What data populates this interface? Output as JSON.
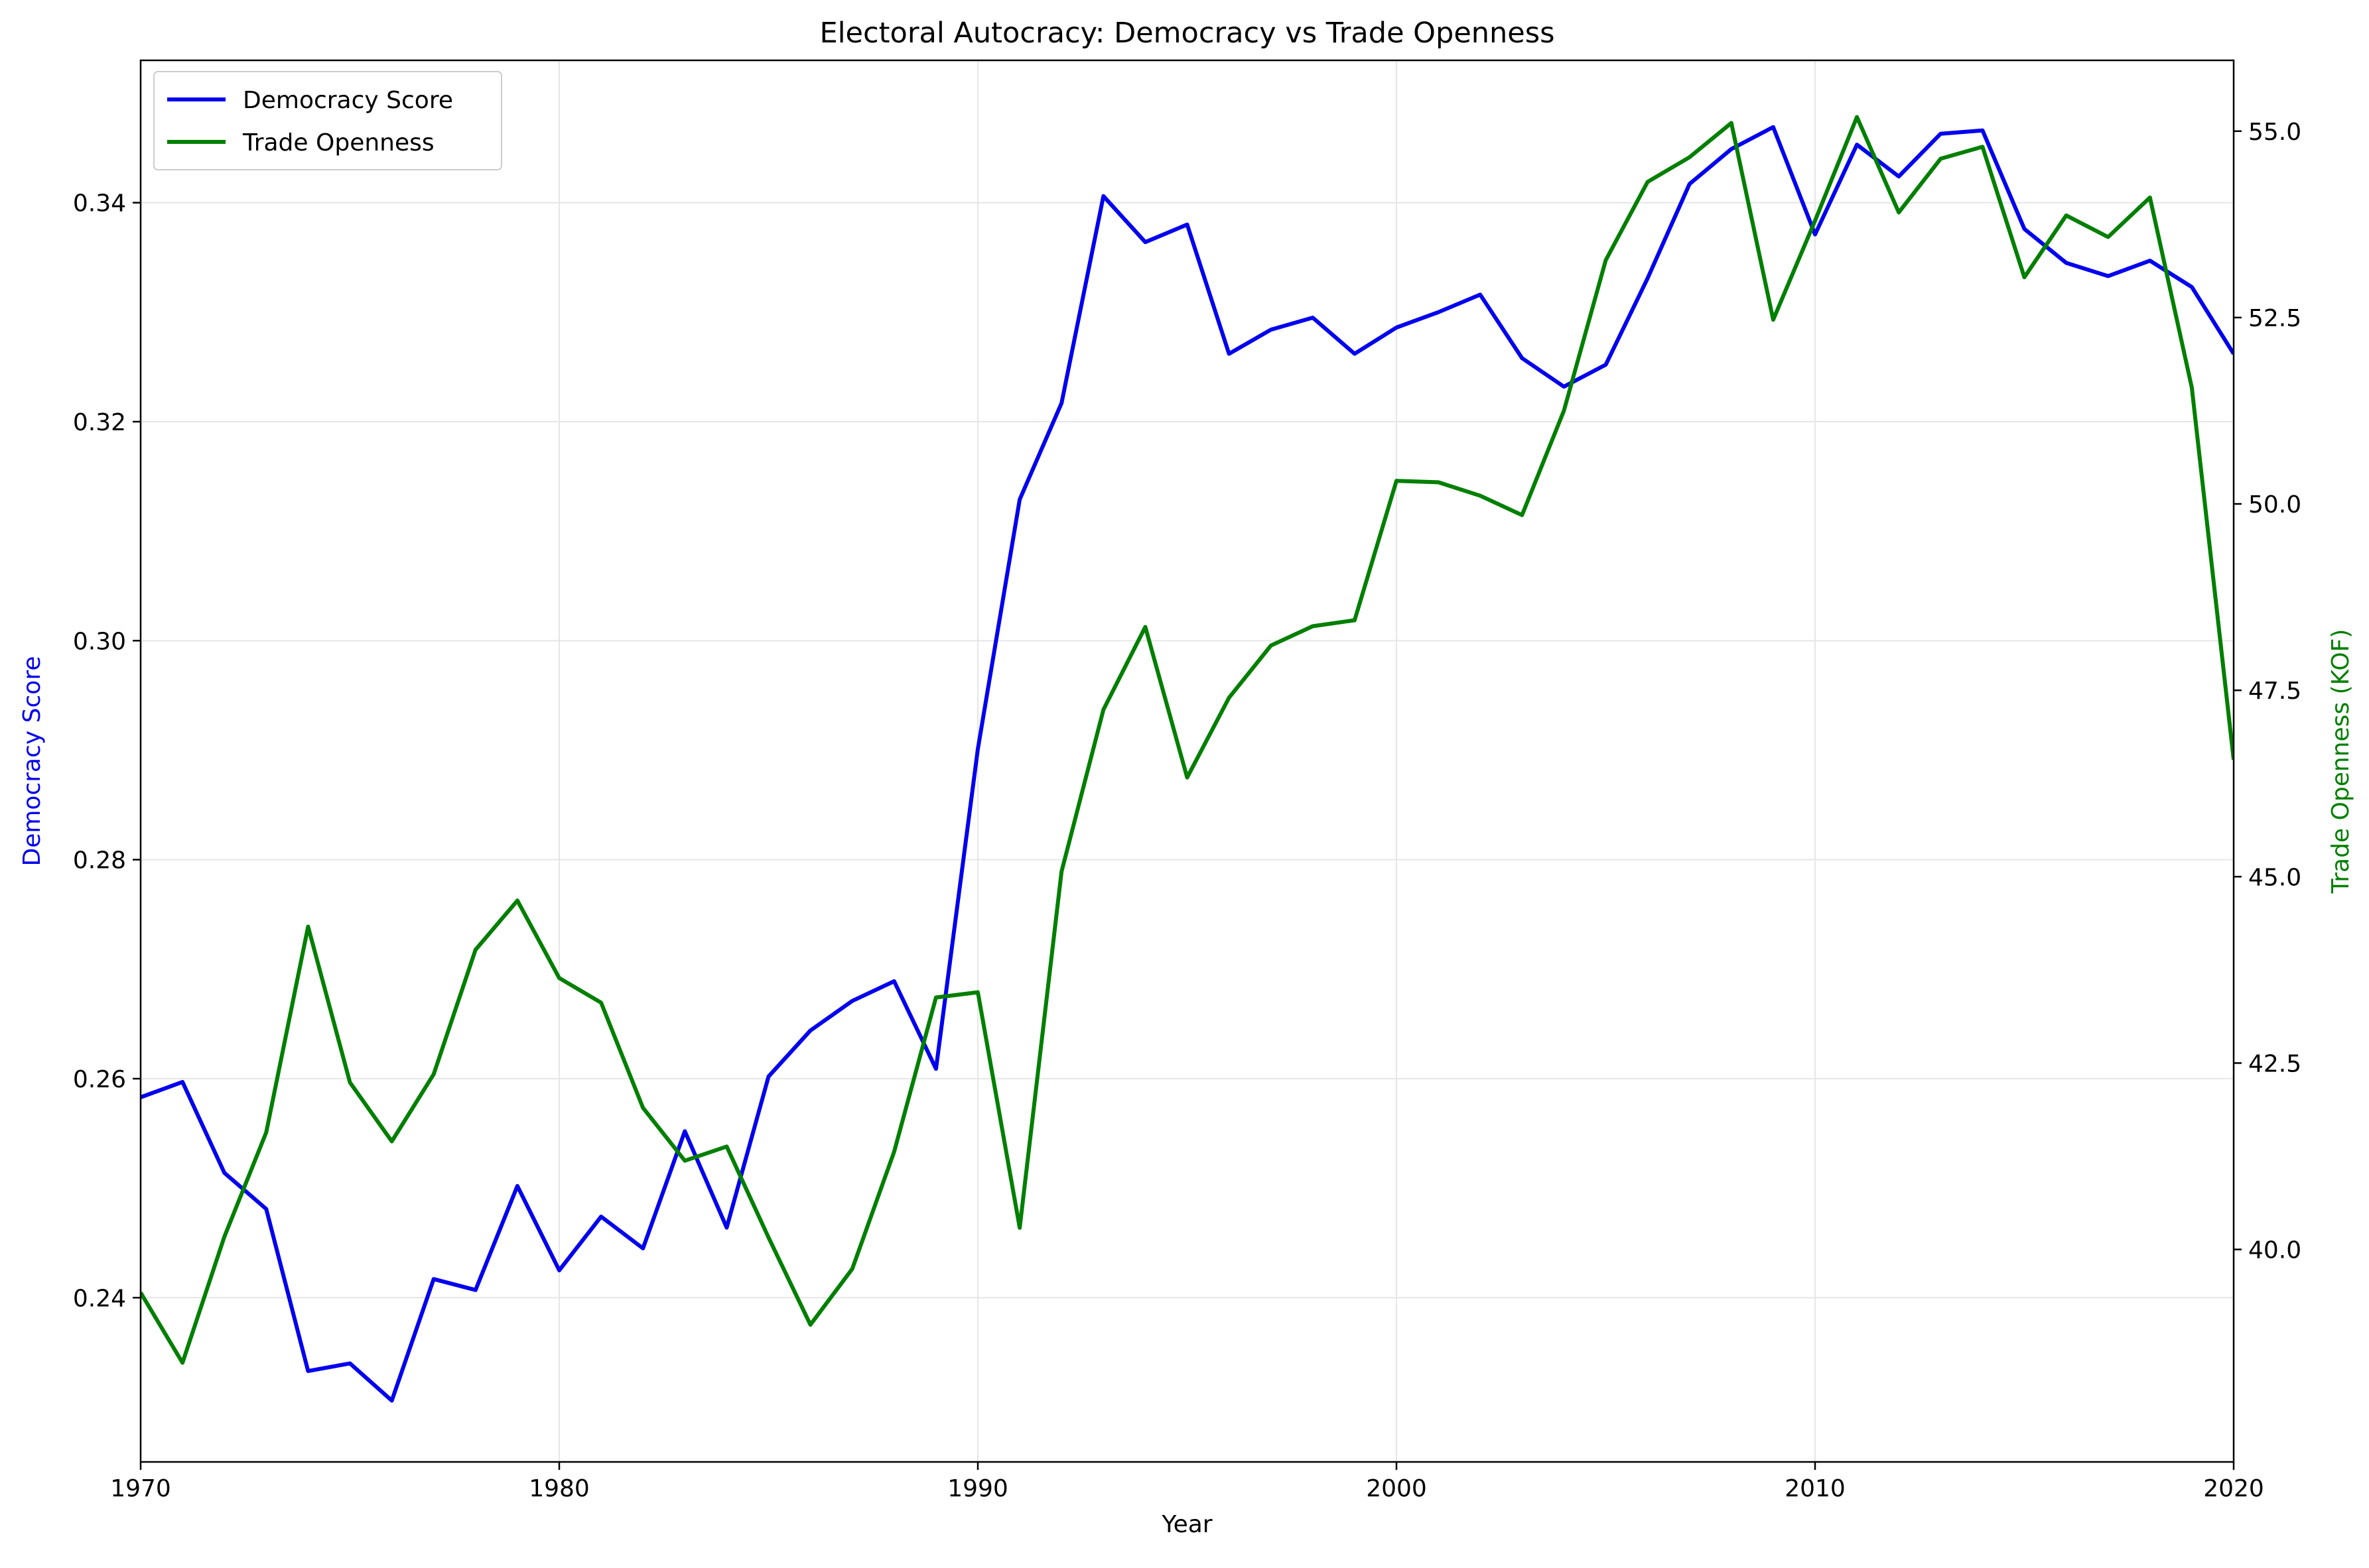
{
  "chart_data": {
    "type": "line",
    "title": "Electoral Autocracy: Democracy vs Trade Openness",
    "xlabel": "Year",
    "ylabel": "Democracy Score",
    "ylabel_right": "Trade Openness (KOF)",
    "xlim": [
      1970,
      2020
    ],
    "ylim": [
      0.225,
      0.353
    ],
    "ylim_right": [
      37.15,
      55.95
    ],
    "x_ticks": [
      1970,
      1980,
      1990,
      2000,
      2010,
      2020
    ],
    "y_ticks": [
      0.24,
      0.26,
      0.28,
      0.3,
      0.32,
      0.34
    ],
    "y_ticks_labels": [
      "0.24",
      "0.26",
      "0.28",
      "0.30",
      "0.32",
      "0.34"
    ],
    "y_ticks_right": [
      40.0,
      42.5,
      45.0,
      47.5,
      50.0,
      52.5,
      55.0
    ],
    "y_ticks_right_labels": [
      "40.0",
      "42.5",
      "45.0",
      "47.5",
      "50.0",
      "52.5",
      "55.0"
    ],
    "grid": true,
    "legend_position": "top-left",
    "x": [
      1970,
      1971,
      1972,
      1973,
      1974,
      1975,
      1976,
      1977,
      1978,
      1979,
      1980,
      1981,
      1982,
      1983,
      1984,
      1985,
      1986,
      1987,
      1988,
      1989,
      1990,
      1991,
      1992,
      1993,
      1994,
      1995,
      1996,
      1997,
      1998,
      1999,
      2000,
      2001,
      2002,
      2003,
      2004,
      2005,
      2006,
      2007,
      2008,
      2009,
      2010,
      2011,
      2012,
      2013,
      2014,
      2015,
      2016,
      2017,
      2018,
      2019,
      2020
    ],
    "series": [
      {
        "name": "Democracy Score",
        "axis": "left",
        "color": "#0000ee",
        "values": [
          0.2583,
          0.2597,
          0.2514,
          0.2481,
          0.2333,
          0.234,
          0.2306,
          0.2417,
          0.2407,
          0.2502,
          0.2425,
          0.2474,
          0.2445,
          0.2552,
          0.2464,
          0.2602,
          0.2644,
          0.2671,
          0.2689,
          0.2609,
          0.2901,
          0.3129,
          0.3217,
          0.3406,
          0.3364,
          0.338,
          0.3262,
          0.3284,
          0.3295,
          0.3262,
          0.3286,
          0.33,
          0.3316,
          0.3258,
          0.3232,
          0.3252,
          0.3331,
          0.3417,
          0.3449,
          0.3469,
          0.3371,
          0.3453,
          0.3424,
          0.3463,
          0.3466,
          0.3376,
          0.3345,
          0.3333,
          0.3347,
          0.3323,
          0.3262
        ]
      },
      {
        "name": "Trade Openness",
        "axis": "right",
        "color": "#007f00",
        "values": [
          39.42,
          38.48,
          40.17,
          41.57,
          44.33,
          42.24,
          41.45,
          42.35,
          44.02,
          44.68,
          43.64,
          43.31,
          41.9,
          41.19,
          41.38,
          40.16,
          38.99,
          39.74,
          41.31,
          43.38,
          43.45,
          40.29,
          45.07,
          47.24,
          48.35,
          46.33,
          47.4,
          48.1,
          48.36,
          48.44,
          50.31,
          50.29,
          50.11,
          49.85,
          51.25,
          53.27,
          54.32,
          54.65,
          55.11,
          52.47,
          53.8,
          55.19,
          53.91,
          54.63,
          54.79,
          53.04,
          53.87,
          53.58,
          54.11,
          51.56,
          46.57
        ]
      }
    ]
  }
}
